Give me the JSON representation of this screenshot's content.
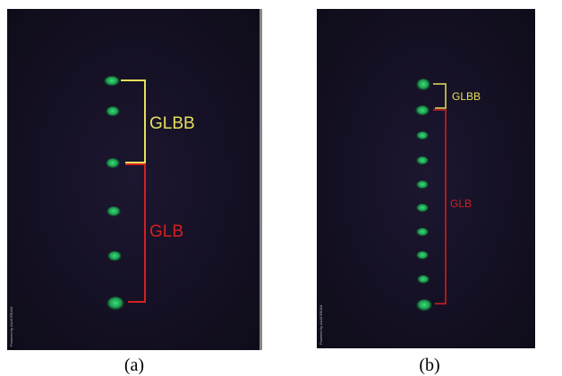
{
  "panels": [
    {
      "label": "(a)",
      "upper_annotation": "GLBB",
      "lower_annotation": "GLB",
      "watermark": "Powered by AAACREAM"
    },
    {
      "label": "(b)",
      "upper_annotation": "GLBB",
      "lower_annotation": "GLB",
      "watermark": "Powered by AAACREAM"
    }
  ]
}
